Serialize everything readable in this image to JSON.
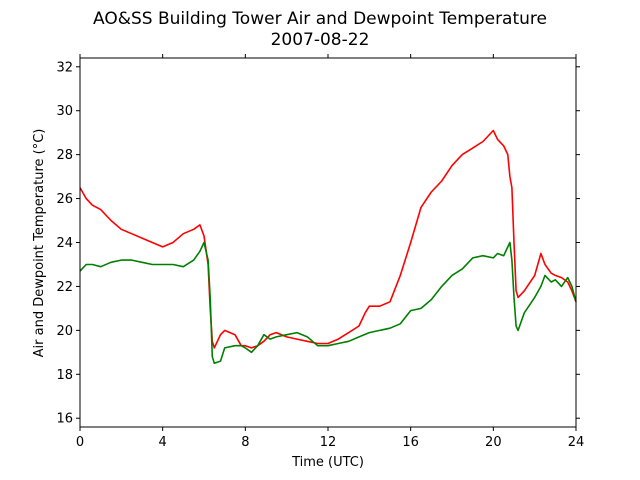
{
  "chart_data": {
    "type": "line",
    "title": "AO&SS Building Tower Air and Dewpoint Temperature",
    "subtitle": "2007-08-22",
    "xlabel": "Time (UTC)",
    "ylabel": "Air and Dewpoint Temperature (°C)",
    "xlim": [
      0,
      24
    ],
    "ylim": [
      15.6,
      32.4
    ],
    "xticks": [
      0,
      4,
      8,
      12,
      16,
      20,
      24
    ],
    "yticks": [
      16,
      18,
      20,
      22,
      24,
      26,
      28,
      30,
      32
    ],
    "grid": false,
    "legend": "none",
    "series": [
      {
        "color": "#ff0000",
        "x": [
          0,
          0.3,
          0.6,
          1.0,
          1.5,
          2.0,
          2.5,
          3.0,
          3.5,
          4.0,
          4.5,
          5.0,
          5.5,
          5.8,
          6.0,
          6.2,
          6.3,
          6.4,
          6.5,
          6.8,
          7.0,
          7.5,
          7.8,
          8.0,
          8.3,
          8.6,
          8.9,
          9.2,
          9.5,
          10.0,
          10.5,
          11.0,
          11.5,
          12.0,
          12.5,
          13.0,
          13.5,
          13.8,
          14.0,
          14.5,
          15.0,
          15.5,
          16.0,
          16.5,
          17.0,
          17.5,
          18.0,
          18.5,
          19.0,
          19.5,
          20.0,
          20.2,
          20.5,
          20.7,
          20.8,
          20.9,
          21.0,
          21.1,
          21.2,
          21.5,
          22.0,
          22.3,
          22.5,
          22.8,
          23.0,
          23.3,
          23.6,
          23.8,
          24.0
        ],
        "values": [
          26.5,
          26.0,
          25.7,
          25.5,
          25.0,
          24.6,
          24.4,
          24.2,
          24.0,
          23.8,
          24.0,
          24.4,
          24.6,
          24.8,
          24.3,
          23.0,
          21.0,
          19.5,
          19.2,
          19.8,
          20.0,
          19.8,
          19.3,
          19.3,
          19.2,
          19.3,
          19.5,
          19.8,
          19.9,
          19.7,
          19.6,
          19.5,
          19.4,
          19.4,
          19.6,
          19.9,
          20.2,
          20.8,
          21.1,
          21.1,
          21.3,
          22.5,
          24.0,
          25.6,
          26.3,
          26.8,
          27.5,
          28.0,
          28.3,
          28.6,
          29.1,
          28.7,
          28.4,
          28.0,
          27.0,
          26.5,
          24.0,
          21.8,
          21.5,
          21.8,
          22.5,
          23.5,
          23.0,
          22.6,
          22.5,
          22.4,
          22.2,
          21.8,
          21.3
        ]
      },
      {
        "color": "#008000",
        "x": [
          0,
          0.3,
          0.6,
          1.0,
          1.5,
          2.0,
          2.5,
          3.0,
          3.5,
          4.0,
          4.5,
          5.0,
          5.5,
          5.8,
          6.0,
          6.2,
          6.3,
          6.4,
          6.5,
          6.8,
          7.0,
          7.5,
          7.8,
          8.0,
          8.3,
          8.6,
          8.9,
          9.2,
          9.5,
          10.0,
          10.5,
          11.0,
          11.5,
          12.0,
          12.5,
          13.0,
          13.5,
          14.0,
          14.5,
          15.0,
          15.5,
          16.0,
          16.5,
          17.0,
          17.5,
          18.0,
          18.5,
          19.0,
          19.5,
          20.0,
          20.2,
          20.5,
          20.7,
          20.8,
          20.9,
          21.0,
          21.1,
          21.2,
          21.5,
          22.0,
          22.3,
          22.5,
          22.8,
          23.0,
          23.3,
          23.6,
          23.8,
          24.0
        ],
        "values": [
          22.7,
          23.0,
          23.0,
          22.9,
          23.1,
          23.2,
          23.2,
          23.1,
          23.0,
          23.0,
          23.0,
          22.9,
          23.2,
          23.6,
          24.0,
          23.2,
          21.5,
          18.8,
          18.5,
          18.6,
          19.2,
          19.3,
          19.3,
          19.2,
          19.0,
          19.3,
          19.8,
          19.6,
          19.7,
          19.8,
          19.9,
          19.7,
          19.3,
          19.3,
          19.4,
          19.5,
          19.7,
          19.9,
          20.0,
          20.1,
          20.3,
          20.9,
          21.0,
          21.4,
          22.0,
          22.5,
          22.8,
          23.3,
          23.4,
          23.3,
          23.5,
          23.4,
          23.8,
          24.0,
          23.2,
          21.5,
          20.2,
          20.0,
          20.8,
          21.5,
          22.0,
          22.5,
          22.2,
          22.3,
          22.0,
          22.4,
          22.0,
          21.3
        ]
      }
    ]
  }
}
